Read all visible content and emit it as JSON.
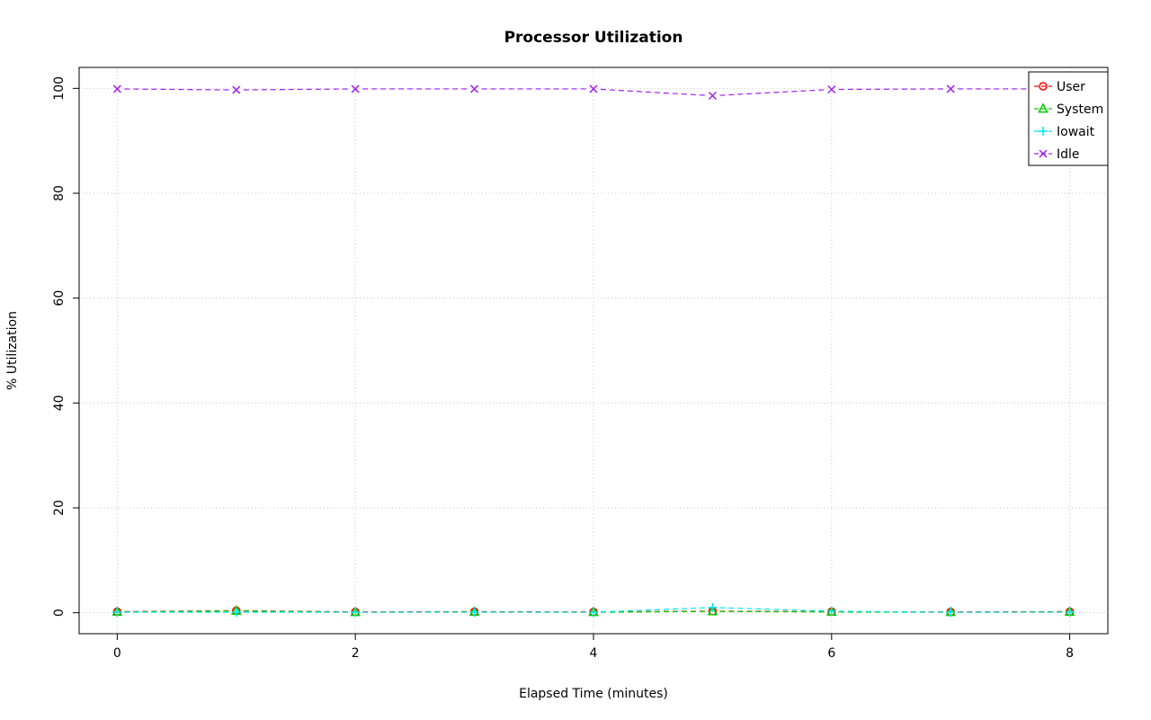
{
  "page": {
    "background": "#ffffff"
  },
  "chart_data": {
    "type": "line",
    "title": "Processor Utilization",
    "xlabel": "Elapsed Time (minutes)",
    "ylabel": "% Utilization",
    "x": [
      0,
      1,
      2,
      3,
      4,
      5,
      6,
      7,
      8
    ],
    "xticks": [
      0,
      2,
      4,
      6,
      8
    ],
    "yticks": [
      0,
      20,
      40,
      60,
      80,
      100
    ],
    "xlim": [
      0,
      8
    ],
    "ylim": [
      0,
      100
    ],
    "grid": true,
    "grid_color": "#c8c8c8",
    "box_color": "#000000",
    "legend_position": "top-right",
    "series": [
      {
        "name": "User",
        "color": "#ff0000",
        "marker": "circle",
        "values": [
          0.2,
          0.4,
          0.15,
          0.2,
          0.15,
          0.3,
          0.2,
          0.15,
          0.2
        ]
      },
      {
        "name": "System",
        "color": "#00cd00",
        "marker": "triangle",
        "values": [
          0.15,
          0.35,
          0.1,
          0.15,
          0.1,
          0.25,
          0.15,
          0.1,
          0.15
        ]
      },
      {
        "name": "Iowait",
        "color": "#00e5ee",
        "marker": "plus",
        "values": [
          0.1,
          0.1,
          0.1,
          0.1,
          0.1,
          1.0,
          0.3,
          0.1,
          0.1
        ]
      },
      {
        "name": "Idle",
        "color": "#a020f0",
        "marker": "x",
        "values": [
          99.9,
          99.7,
          99.9,
          99.9,
          99.9,
          98.6,
          99.8,
          99.9,
          99.9
        ]
      }
    ]
  }
}
